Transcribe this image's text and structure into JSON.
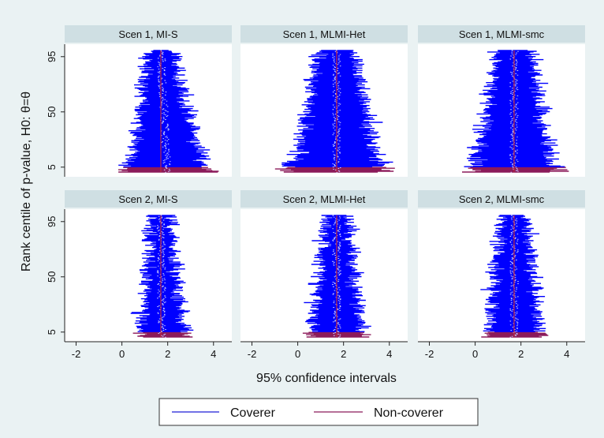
{
  "chart_data": {
    "type": "zipper_plot",
    "xlabel": "95% confidence intervals",
    "ylabel": "Rank centile of p-value, H0: θ=θ",
    "xlim": [
      -2.5,
      4.8
    ],
    "xticks": [
      -2,
      0,
      2,
      4
    ],
    "yticks": [
      5,
      50,
      95
    ],
    "ylim": [
      0,
      100
    ],
    "grid": false,
    "legend": {
      "position": "bottom",
      "entries": [
        {
          "label": "Coverer",
          "color": "#1f1fd8"
        },
        {
          "label": "Non-coverer",
          "color": "#8b1a5a"
        }
      ]
    },
    "colors": {
      "coverer": "#0000ff",
      "noncoverer": "#8b1a5a",
      "estimate_points": "#c8c8ff",
      "true_value_line": "#c0283c",
      "panel_header": "#cfdfe3",
      "figure_background": "#eaf2f3"
    },
    "true_value": 1.7,
    "panels": [
      {
        "title": "Scen 1, MI-S",
        "row": 1,
        "col": 1,
        "center": 1.7,
        "halfwidth_min": 0.55,
        "halfwidth_max": 2.0,
        "bias": 0.28
      },
      {
        "title": "Scen 1, MLMI-Het",
        "row": 1,
        "col": 2,
        "center": 1.7,
        "halfwidth_min": 0.8,
        "halfwidth_max": 2.3,
        "bias": 0.0
      },
      {
        "title": "Scen 1, MLMI-smc",
        "row": 1,
        "col": 3,
        "center": 1.7,
        "halfwidth_min": 0.8,
        "halfwidth_max": 1.95,
        "bias": 0.0
      },
      {
        "title": "Scen 2, MI-S",
        "row": 2,
        "col": 1,
        "center": 1.7,
        "halfwidth_min": 0.4,
        "halfwidth_max": 1.15,
        "bias": 0.05
      },
      {
        "title": "Scen 2, MLMI-Het",
        "row": 2,
        "col": 2,
        "center": 1.7,
        "halfwidth_min": 0.55,
        "halfwidth_max": 1.25,
        "bias": 0.0
      },
      {
        "title": "Scen 2, MLMI-smc",
        "row": 2,
        "col": 3,
        "center": 1.7,
        "halfwidth_min": 0.6,
        "halfwidth_max": 1.3,
        "bias": 0.0
      }
    ]
  }
}
